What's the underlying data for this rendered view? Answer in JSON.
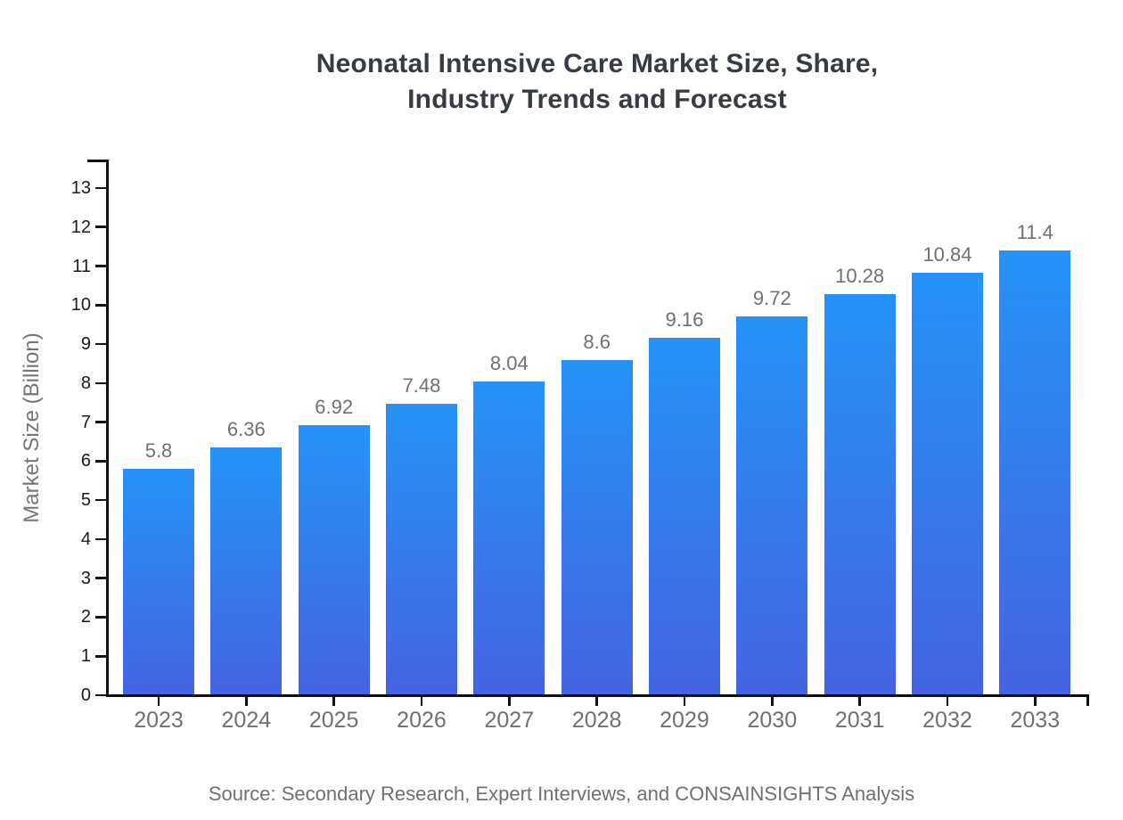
{
  "title": {
    "line1": "Neonatal Intensive Care Market Size, Share,",
    "line2": "Industry Trends and Forecast"
  },
  "source_note": "Source: Secondary Research, Expert Interviews, and CONSAINSIGHTS Analysis",
  "colors": {
    "title_text": "#363b44",
    "axis": "#111111",
    "y_tick_label": "#1a1b1e",
    "muted_text": "#6f7073",
    "bar_gradient_top": "#2593f9",
    "bar_gradient_bottom": "#4464df"
  },
  "chart_data": {
    "type": "bar",
    "title": "Neonatal Intensive Care Market Size, Share, Industry Trends and Forecast",
    "categories": [
      "2023",
      "2024",
      "2025",
      "2026",
      "2027",
      "2028",
      "2029",
      "2030",
      "2031",
      "2032",
      "2033"
    ],
    "values": [
      5.8,
      6.36,
      6.92,
      7.48,
      8.04,
      8.6,
      9.16,
      9.72,
      10.28,
      10.84,
      11.4
    ],
    "value_labels": [
      "5.8",
      "6.36",
      "6.92",
      "7.48",
      "8.04",
      "8.6",
      "9.16",
      "9.72",
      "10.28",
      "10.84",
      "11.4"
    ],
    "xlabel": "",
    "ylabel": "Market Size (Billion)",
    "ylim": [
      0,
      13
    ],
    "ytick_step": 1,
    "grid": false,
    "legend": "none",
    "bar_color_gradient": [
      "#2593f9",
      "#4464df"
    ],
    "source": "Source: Secondary Research, Expert Interviews, and CONSAINSIGHTS Analysis"
  }
}
